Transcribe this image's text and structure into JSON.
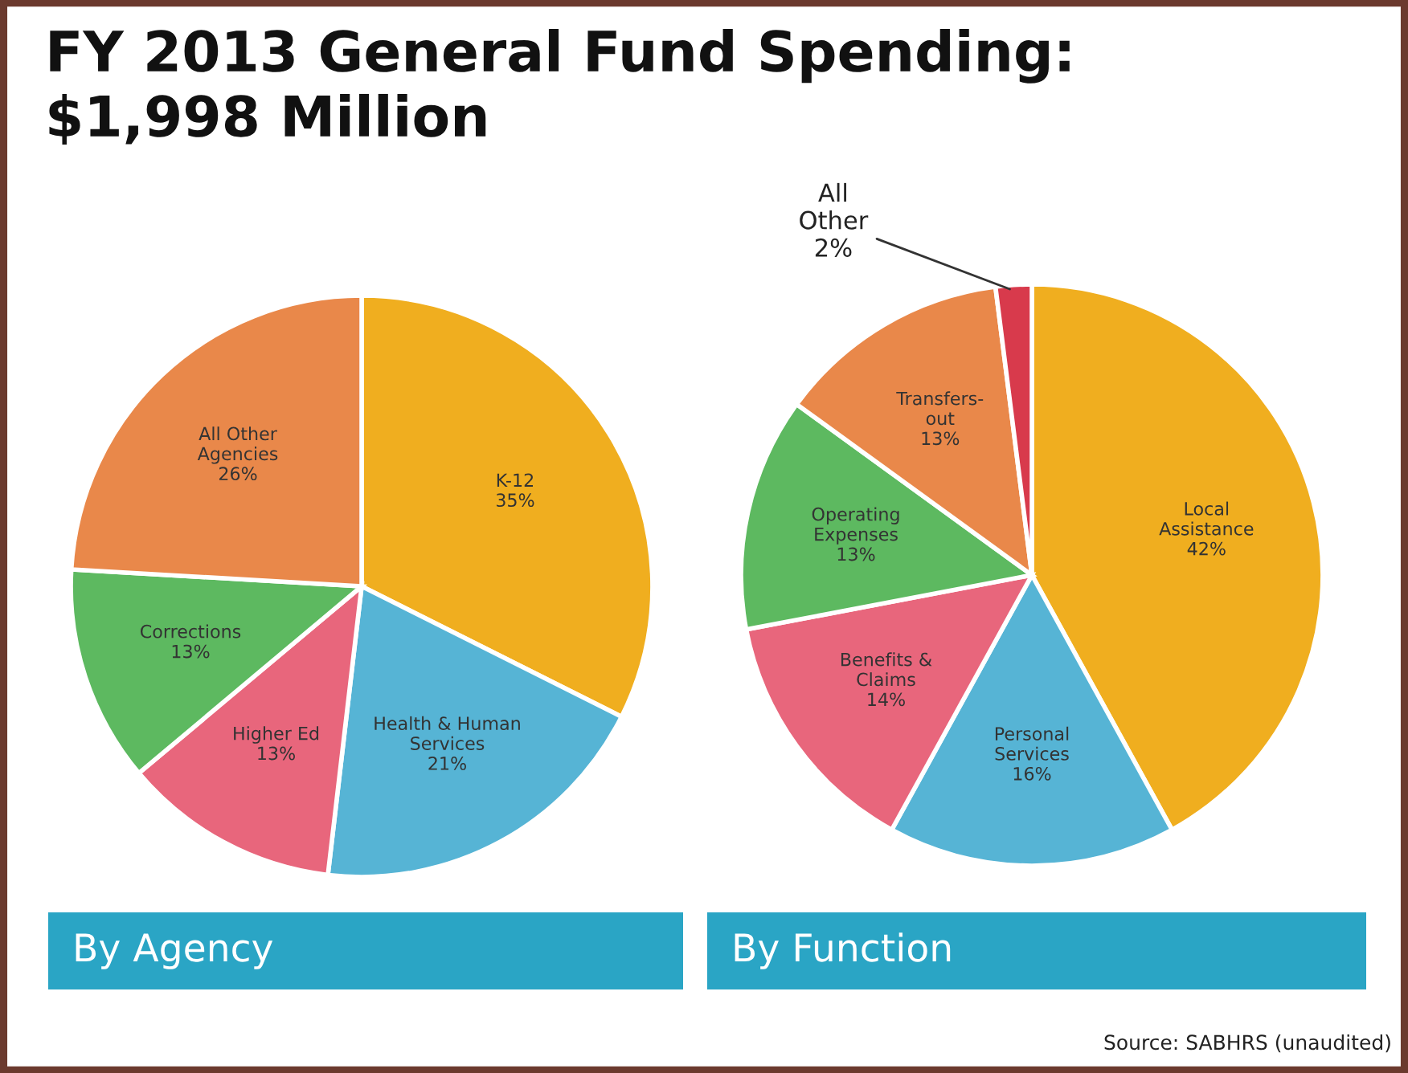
{
  "chart_data": [
    {
      "type": "pie",
      "title": "FY 2013 General Fund Spending:\n$1,998 Million",
      "subtitle": "By Agency",
      "categories": [
        "K-12",
        "Health & Human\nServices",
        "Higher Ed",
        "Corrections",
        "All Other\nAgencies"
      ],
      "values": [
        35,
        21,
        13,
        13,
        26
      ],
      "value_labels": [
        "35%",
        "21%",
        "13%",
        "13%",
        "26%"
      ],
      "colors": [
        "#f0ae1f",
        "#56b4d5",
        "#e8667c",
        "#5db960",
        "#e9884a"
      ]
    },
    {
      "type": "pie",
      "subtitle": "By Function",
      "categories": [
        "Local\nAssistance",
        "Personal\nServices",
        "Benefits &\nClaims",
        "Operating\nExpenses",
        "Transfers-\nout",
        "All\nOther"
      ],
      "values": [
        42,
        16,
        14,
        13,
        13,
        2
      ],
      "value_labels": [
        "42%",
        "16%",
        "14%",
        "13%",
        "13%",
        "2%"
      ],
      "colors": [
        "#f0ae1f",
        "#56b4d5",
        "#e8667c",
        "#5db960",
        "#e9884a",
        "#d83a4c"
      ],
      "annotations": [
        "Source: SABHRS (unaudited)"
      ]
    }
  ]
}
